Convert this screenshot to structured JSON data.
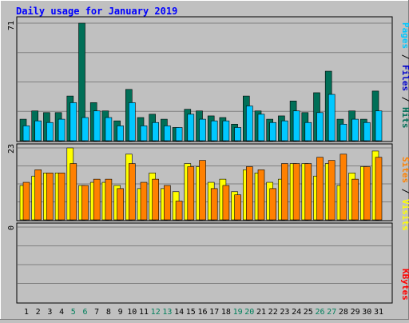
{
  "chart_data": [
    {
      "type": "bar",
      "panel": "hits",
      "title": "Daily usage for January 2019",
      "y_max_label": "71",
      "ylim": [
        0,
        71
      ],
      "categories": [
        "1",
        "2",
        "3",
        "4",
        "5",
        "6",
        "7",
        "8",
        "9",
        "10",
        "11",
        "12",
        "13",
        "14",
        "15",
        "16",
        "17",
        "18",
        "19",
        "20",
        "21",
        "22",
        "23",
        "24",
        "25",
        "26",
        "27",
        "28",
        "29",
        "30",
        "31"
      ],
      "weekend_days": [
        "5",
        "6",
        "12",
        "13",
        "19",
        "20",
        "26",
        "27"
      ],
      "series": [
        {
          "name": "Hits",
          "color": "#006f57",
          "values": [
            13,
            18,
            17,
            17,
            27,
            71,
            23,
            18,
            12,
            31,
            14,
            16,
            13,
            8,
            19,
            18,
            15,
            14,
            10,
            27,
            18,
            13,
            15,
            24,
            17,
            29,
            42,
            13,
            18,
            13,
            30
          ]
        },
        {
          "name": "Files",
          "color": "#0000cc",
          "values": [
            0,
            0,
            0,
            0,
            0,
            0,
            0,
            0,
            0,
            0,
            0,
            0,
            0,
            0,
            0,
            0,
            0,
            0,
            0,
            0,
            0,
            0,
            0,
            0,
            0,
            0,
            0,
            0,
            0,
            0,
            0
          ]
        },
        {
          "name": "Pages",
          "color": "#00c8ff",
          "values": [
            9,
            12,
            11,
            13,
            23,
            14,
            18,
            14,
            9,
            23,
            9,
            11,
            9,
            8,
            16,
            13,
            12,
            12,
            8,
            21,
            16,
            11,
            12,
            18,
            11,
            17,
            28,
            10,
            13,
            11,
            18
          ]
        }
      ]
    },
    {
      "type": "bar",
      "panel": "visits",
      "y_max_label": "23",
      "ylim": [
        0,
        23
      ],
      "series": [
        {
          "name": "Visits",
          "color": "#ffff00",
          "values": [
            11,
            14,
            15,
            15,
            23,
            11,
            12,
            12,
            11,
            21,
            10,
            15,
            10,
            9,
            18,
            17,
            12,
            13,
            9,
            16,
            15,
            12,
            13,
            18,
            18,
            14,
            18,
            11,
            15,
            17,
            22
          ]
        },
        {
          "name": "Sites",
          "color": "#ff8000",
          "values": [
            12,
            16,
            15,
            15,
            18,
            11,
            13,
            13,
            10,
            18,
            12,
            13,
            11,
            6,
            17,
            19,
            10,
            11,
            8,
            17,
            16,
            10,
            18,
            18,
            18,
            20,
            19,
            21,
            13,
            17,
            20
          ]
        }
      ]
    },
    {
      "type": "bar",
      "panel": "kbytes",
      "y_max_label": "0",
      "ylim": [
        0,
        1
      ],
      "series": [
        {
          "name": "KBytes",
          "color": "#ff0000",
          "values": [
            0,
            0,
            0,
            0,
            0,
            0,
            0,
            0,
            0,
            0,
            0,
            0,
            0,
            0,
            0,
            0,
            0,
            0,
            0,
            0,
            0,
            0,
            0,
            0,
            0,
            0,
            0,
            0,
            0,
            0,
            0
          ]
        }
      ]
    }
  ],
  "labels": {
    "title": "Daily usage for January 2019",
    "legend_top": {
      "pages": "Pages",
      "files": "Files",
      "hits": "Hits",
      "sep": " / "
    },
    "legend_mid": {
      "sites": "Sites",
      "visits": "Visits",
      "sep": " / "
    },
    "legend_bottom": {
      "kbytes": "KBytes"
    }
  },
  "colors": {
    "background": "#c0c0c0",
    "plot": "#c0c0c0",
    "title": "#0000ff",
    "day_label": "#000000",
    "weekend_label": "#00805c",
    "grid": "#808080"
  }
}
